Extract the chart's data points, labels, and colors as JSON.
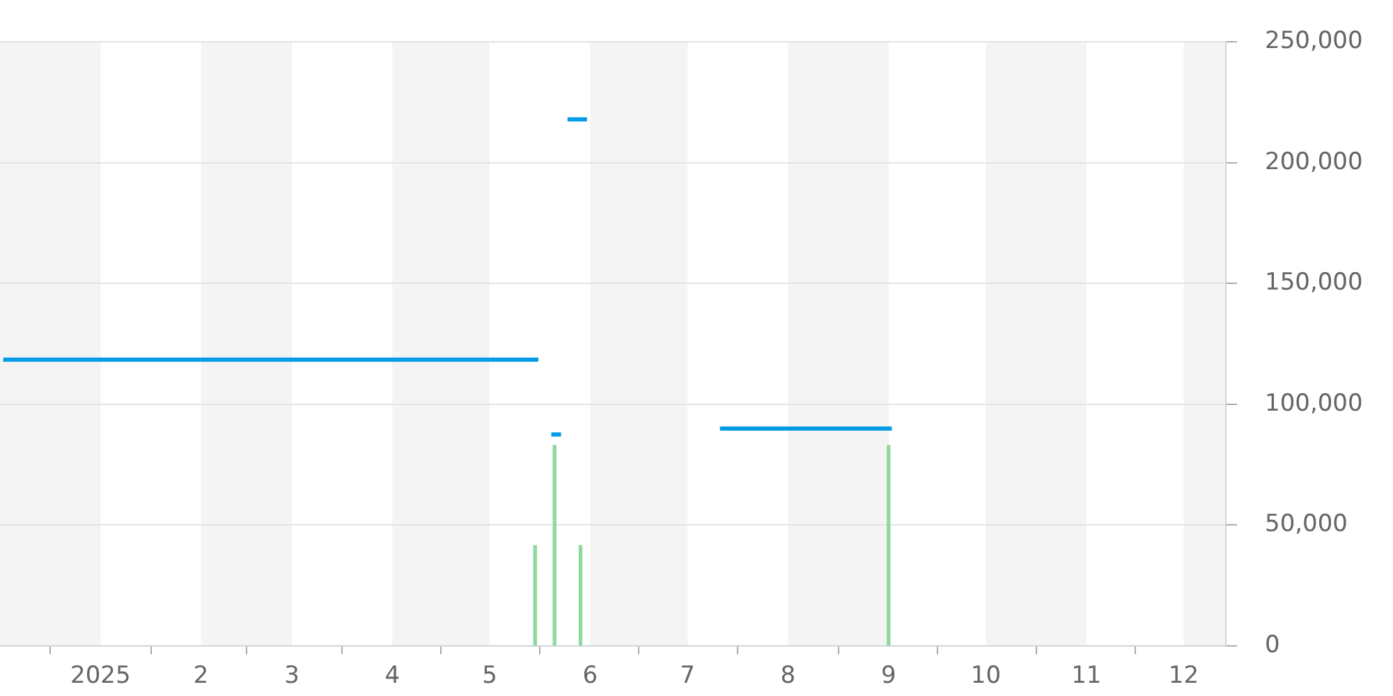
{
  "chart_data": {
    "type": "line",
    "series": [
      {
        "color": "#039be5",
        "x": [
          "2024-12-02",
          "2025-05-16",
          "2025-05-18",
          "2025-05-20",
          "2025-05-23",
          "2025-05-24",
          "2025-05-25",
          "2025-05-31",
          "2025-06-20",
          "2025-07-11",
          "2025-09-02"
        ],
        "values": [
          118500,
          118500,
          null,
          87500,
          87500,
          null,
          218000,
          218000,
          null,
          90000,
          90000
        ]
      },
      {
        "type": "bar",
        "color": "#8fd8a0",
        "x": [
          "2025-05-15",
          "2025-05-21",
          "2025-05-29",
          "2025-09-01"
        ],
        "values": [
          41500,
          83000,
          41500,
          83000
        ]
      }
    ],
    "xlim": [
      "2024-12-01",
      "2025-12-14"
    ],
    "xticks": [
      {
        "value": "2025-01-01",
        "label": "2025"
      },
      {
        "value": "2025-02-01",
        "label": "2"
      },
      {
        "value": "2025-03-01",
        "label": "3"
      },
      {
        "value": "2025-04-01",
        "label": "4"
      },
      {
        "value": "2025-05-01",
        "label": "5"
      },
      {
        "value": "2025-06-01",
        "label": "6"
      },
      {
        "value": "2025-07-01",
        "label": "7"
      },
      {
        "value": "2025-08-01",
        "label": "8"
      },
      {
        "value": "2025-09-01",
        "label": "9"
      },
      {
        "value": "2025-10-01",
        "label": "10"
      },
      {
        "value": "2025-11-01",
        "label": "11"
      },
      {
        "value": "2025-12-01",
        "label": "12"
      }
    ],
    "ylim": [
      0,
      250000
    ],
    "yticks": [
      0,
      {
        "value": 50000,
        "label": "50,000"
      },
      {
        "value": 100000,
        "label": "100,000"
      },
      {
        "value": 150000,
        "label": "150,000"
      },
      {
        "value": 200000,
        "label": "200,000"
      },
      {
        "value": 250000,
        "label": "250,000"
      }
    ],
    "grid": "y",
    "marker": "none",
    "bands": [
      {
        "axis": "x",
        "from": "2024-12-01",
        "to": "2025-01-01",
        "color": "#f4f4f4"
      },
      {
        "axis": "x",
        "from": "2025-02-01",
        "to": "2025-03-01",
        "color": "#f4f4f4"
      },
      {
        "axis": "x",
        "from": "2025-04-01",
        "to": "2025-05-01",
        "color": "#f4f4f4"
      },
      {
        "axis": "x",
        "from": "2025-06-01",
        "to": "2025-07-01",
        "color": "#f4f4f4"
      },
      {
        "axis": "x",
        "from": "2025-08-01",
        "to": "2025-09-01",
        "color": "#f4f4f4"
      },
      {
        "axis": "x",
        "from": "2025-10-01",
        "to": "2025-11-01",
        "color": "#f4f4f4"
      },
      {
        "axis": "x",
        "from": "2025-12-01",
        "to": "2025-12-14",
        "color": "#f4f4f4"
      }
    ]
  }
}
